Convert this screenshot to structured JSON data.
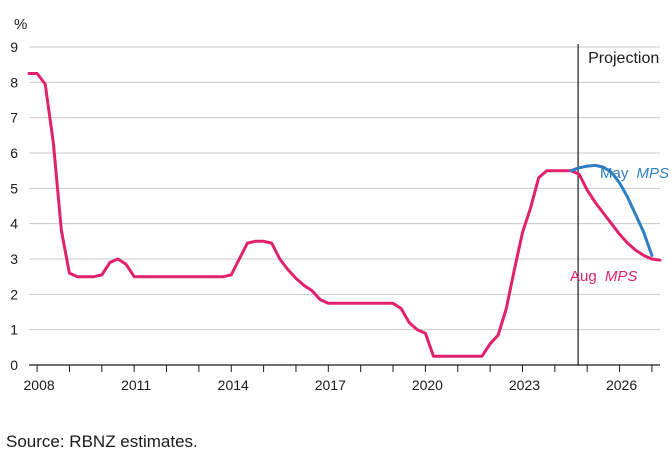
{
  "chart_data": {
    "type": "line",
    "ylabel": "%",
    "ylim": [
      0,
      9
    ],
    "yticks": [
      "0",
      "1",
      "2",
      "3",
      "4",
      "5",
      "6",
      "7",
      "8",
      "9"
    ],
    "xlim": [
      2007.75,
      2027.25
    ],
    "xticks": [
      {
        "label": "2008",
        "value": 2008
      },
      {
        "label": "2011",
        "value": 2011
      },
      {
        "label": "2014",
        "value": 2014
      },
      {
        "label": "2017",
        "value": 2017
      },
      {
        "label": "2020",
        "value": 2020
      },
      {
        "label": "2023",
        "value": 2023
      },
      {
        "label": "2026",
        "value": 2026
      }
    ],
    "grid": true,
    "projection_start": 2024.75,
    "projection_label": "Projection",
    "series": [
      {
        "name": "May MPS",
        "name_plain": "May",
        "name_italic": "MPS",
        "color": "#2f7ec1",
        "x": [
          2024.5,
          2024.75,
          2025.0,
          2025.25,
          2025.5,
          2025.75,
          2026.0,
          2026.25,
          2026.5,
          2026.75,
          2027.0
        ],
        "y": [
          5.5,
          5.58,
          5.63,
          5.65,
          5.6,
          5.45,
          5.15,
          4.75,
          4.25,
          3.75,
          3.1
        ]
      },
      {
        "name": "Aug MPS",
        "name_plain": "Aug",
        "name_italic": "MPS",
        "color": "#e0226e",
        "x": [
          2007.75,
          2008.0,
          2008.25,
          2008.5,
          2008.75,
          2009.0,
          2009.25,
          2009.5,
          2009.75,
          2010.0,
          2010.25,
          2010.5,
          2010.75,
          2011.0,
          2011.25,
          2011.5,
          2011.75,
          2012.0,
          2012.25,
          2012.5,
          2012.75,
          2013.0,
          2013.25,
          2013.5,
          2013.75,
          2014.0,
          2014.25,
          2014.5,
          2014.75,
          2015.0,
          2015.25,
          2015.5,
          2015.75,
          2016.0,
          2016.25,
          2016.5,
          2016.75,
          2017.0,
          2017.25,
          2017.5,
          2017.75,
          2018.0,
          2018.25,
          2018.5,
          2018.75,
          2019.0,
          2019.25,
          2019.5,
          2019.75,
          2020.0,
          2020.25,
          2020.5,
          2020.75,
          2021.0,
          2021.25,
          2021.5,
          2021.75,
          2022.0,
          2022.25,
          2022.5,
          2022.75,
          2023.0,
          2023.25,
          2023.5,
          2023.75,
          2024.0,
          2024.25,
          2024.5,
          2024.75,
          2025.0,
          2025.25,
          2025.5,
          2025.75,
          2026.0,
          2026.25,
          2026.5,
          2026.75,
          2027.0,
          2027.25
        ],
        "y": [
          8.25,
          8.25,
          7.95,
          6.3,
          3.8,
          2.6,
          2.5,
          2.5,
          2.5,
          2.55,
          2.9,
          3.0,
          2.85,
          2.5,
          2.5,
          2.5,
          2.5,
          2.5,
          2.5,
          2.5,
          2.5,
          2.5,
          2.5,
          2.5,
          2.5,
          2.55,
          3.0,
          3.45,
          3.5,
          3.5,
          3.45,
          3.0,
          2.7,
          2.45,
          2.25,
          2.1,
          1.85,
          1.75,
          1.75,
          1.75,
          1.75,
          1.75,
          1.75,
          1.75,
          1.75,
          1.75,
          1.6,
          1.2,
          1.0,
          0.9,
          0.25,
          0.25,
          0.25,
          0.25,
          0.25,
          0.25,
          0.25,
          0.6,
          0.85,
          1.6,
          2.7,
          3.75,
          4.45,
          5.3,
          5.5,
          5.5,
          5.5,
          5.5,
          5.4,
          4.95,
          4.6,
          4.3,
          4.0,
          3.7,
          3.45,
          3.25,
          3.1,
          3.0,
          2.97
        ]
      }
    ]
  },
  "source": "Source: RBNZ estimates."
}
